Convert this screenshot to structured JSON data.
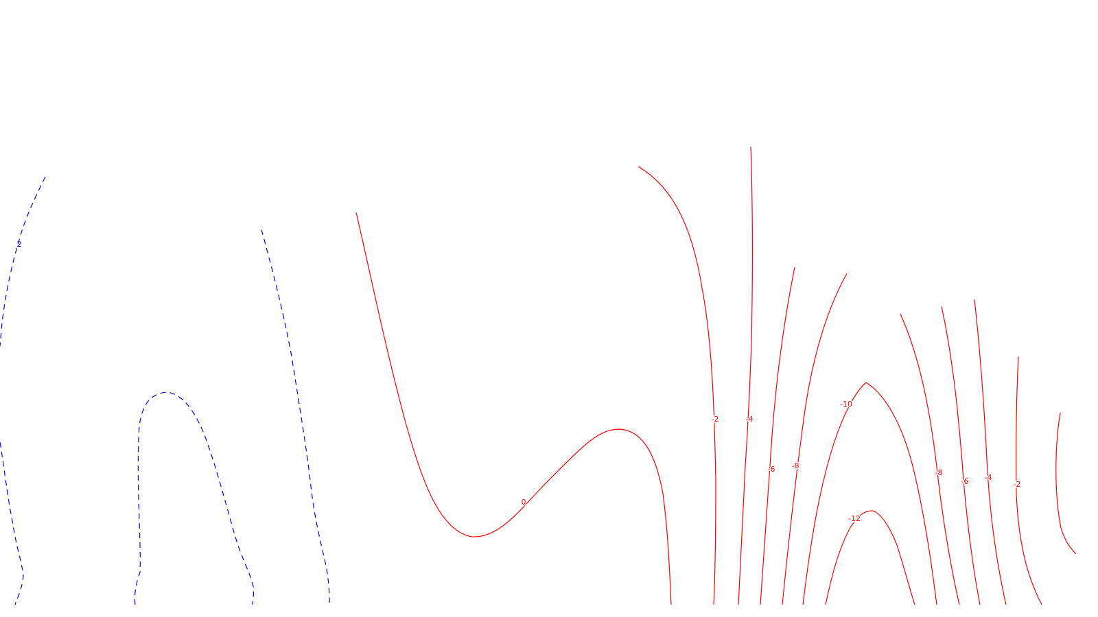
{
  "chart_data": {
    "type": "contour",
    "title": "",
    "xlabel": "",
    "ylabel": "",
    "grid": false,
    "legend": "none",
    "colors": {
      "positive": "#0000ff",
      "negative": "#ff0000"
    },
    "levels": [
      {
        "value": 2,
        "label": "2",
        "sign": "positive",
        "style": "dashed"
      },
      {
        "value": 0,
        "label": "0",
        "sign": "negative",
        "style": "solid"
      },
      {
        "value": -2,
        "label": "-2",
        "sign": "negative",
        "style": "solid"
      },
      {
        "value": -4,
        "label": "-4",
        "sign": "negative",
        "style": "solid"
      },
      {
        "value": -6,
        "label": "-6",
        "sign": "negative",
        "style": "solid"
      },
      {
        "value": -8,
        "label": "-8",
        "sign": "negative",
        "style": "solid"
      },
      {
        "value": -10,
        "label": "-10",
        "sign": "negative",
        "style": "solid"
      },
      {
        "value": -12,
        "label": "-12",
        "sign": "negative",
        "style": "solid"
      }
    ]
  }
}
